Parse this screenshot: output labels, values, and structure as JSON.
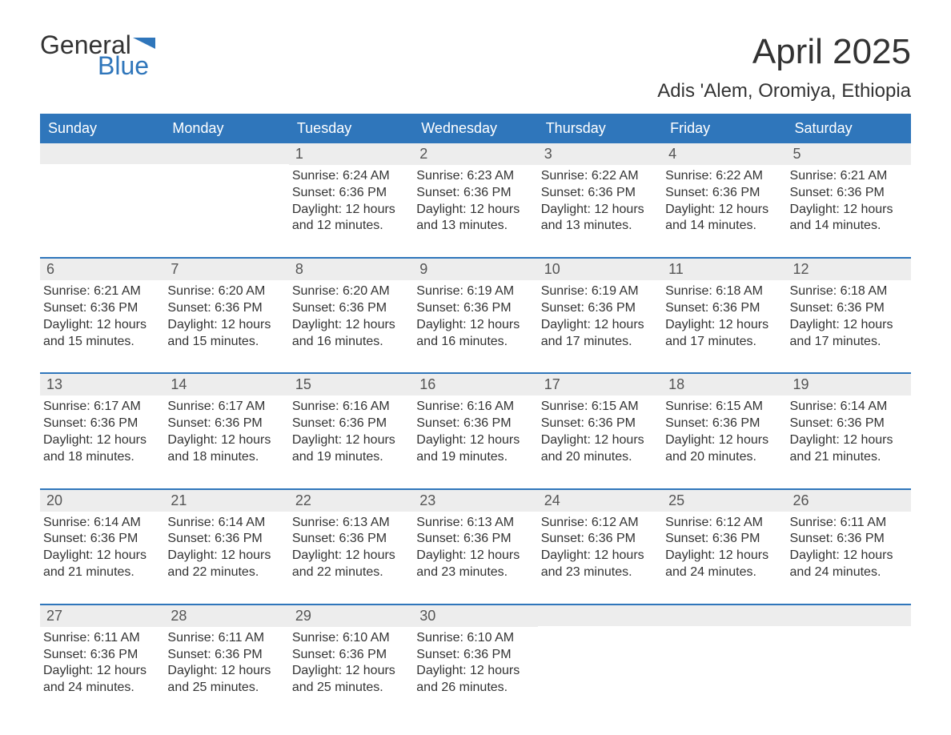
{
  "logo": {
    "general": "General",
    "blue": "Blue"
  },
  "title": "April 2025",
  "location": "Adis 'Alem, Oromiya, Ethiopia",
  "colors": {
    "header_bg": "#2f76bb",
    "header_text": "#ffffff",
    "daynum_bg": "#ededed",
    "daynum_text": "#555555",
    "body_text": "#333333",
    "week_border": "#2f76bb"
  },
  "day_names": [
    "Sunday",
    "Monday",
    "Tuesday",
    "Wednesday",
    "Thursday",
    "Friday",
    "Saturday"
  ],
  "weeks": [
    [
      null,
      null,
      {
        "n": "1",
        "sr": "Sunrise: 6:24 AM",
        "ss": "Sunset: 6:36 PM",
        "d1": "Daylight: 12 hours",
        "d2": "and 12 minutes."
      },
      {
        "n": "2",
        "sr": "Sunrise: 6:23 AM",
        "ss": "Sunset: 6:36 PM",
        "d1": "Daylight: 12 hours",
        "d2": "and 13 minutes."
      },
      {
        "n": "3",
        "sr": "Sunrise: 6:22 AM",
        "ss": "Sunset: 6:36 PM",
        "d1": "Daylight: 12 hours",
        "d2": "and 13 minutes."
      },
      {
        "n": "4",
        "sr": "Sunrise: 6:22 AM",
        "ss": "Sunset: 6:36 PM",
        "d1": "Daylight: 12 hours",
        "d2": "and 14 minutes."
      },
      {
        "n": "5",
        "sr": "Sunrise: 6:21 AM",
        "ss": "Sunset: 6:36 PM",
        "d1": "Daylight: 12 hours",
        "d2": "and 14 minutes."
      }
    ],
    [
      {
        "n": "6",
        "sr": "Sunrise: 6:21 AM",
        "ss": "Sunset: 6:36 PM",
        "d1": "Daylight: 12 hours",
        "d2": "and 15 minutes."
      },
      {
        "n": "7",
        "sr": "Sunrise: 6:20 AM",
        "ss": "Sunset: 6:36 PM",
        "d1": "Daylight: 12 hours",
        "d2": "and 15 minutes."
      },
      {
        "n": "8",
        "sr": "Sunrise: 6:20 AM",
        "ss": "Sunset: 6:36 PM",
        "d1": "Daylight: 12 hours",
        "d2": "and 16 minutes."
      },
      {
        "n": "9",
        "sr": "Sunrise: 6:19 AM",
        "ss": "Sunset: 6:36 PM",
        "d1": "Daylight: 12 hours",
        "d2": "and 16 minutes."
      },
      {
        "n": "10",
        "sr": "Sunrise: 6:19 AM",
        "ss": "Sunset: 6:36 PM",
        "d1": "Daylight: 12 hours",
        "d2": "and 17 minutes."
      },
      {
        "n": "11",
        "sr": "Sunrise: 6:18 AM",
        "ss": "Sunset: 6:36 PM",
        "d1": "Daylight: 12 hours",
        "d2": "and 17 minutes."
      },
      {
        "n": "12",
        "sr": "Sunrise: 6:18 AM",
        "ss": "Sunset: 6:36 PM",
        "d1": "Daylight: 12 hours",
        "d2": "and 17 minutes."
      }
    ],
    [
      {
        "n": "13",
        "sr": "Sunrise: 6:17 AM",
        "ss": "Sunset: 6:36 PM",
        "d1": "Daylight: 12 hours",
        "d2": "and 18 minutes."
      },
      {
        "n": "14",
        "sr": "Sunrise: 6:17 AM",
        "ss": "Sunset: 6:36 PM",
        "d1": "Daylight: 12 hours",
        "d2": "and 18 minutes."
      },
      {
        "n": "15",
        "sr": "Sunrise: 6:16 AM",
        "ss": "Sunset: 6:36 PM",
        "d1": "Daylight: 12 hours",
        "d2": "and 19 minutes."
      },
      {
        "n": "16",
        "sr": "Sunrise: 6:16 AM",
        "ss": "Sunset: 6:36 PM",
        "d1": "Daylight: 12 hours",
        "d2": "and 19 minutes."
      },
      {
        "n": "17",
        "sr": "Sunrise: 6:15 AM",
        "ss": "Sunset: 6:36 PM",
        "d1": "Daylight: 12 hours",
        "d2": "and 20 minutes."
      },
      {
        "n": "18",
        "sr": "Sunrise: 6:15 AM",
        "ss": "Sunset: 6:36 PM",
        "d1": "Daylight: 12 hours",
        "d2": "and 20 minutes."
      },
      {
        "n": "19",
        "sr": "Sunrise: 6:14 AM",
        "ss": "Sunset: 6:36 PM",
        "d1": "Daylight: 12 hours",
        "d2": "and 21 minutes."
      }
    ],
    [
      {
        "n": "20",
        "sr": "Sunrise: 6:14 AM",
        "ss": "Sunset: 6:36 PM",
        "d1": "Daylight: 12 hours",
        "d2": "and 21 minutes."
      },
      {
        "n": "21",
        "sr": "Sunrise: 6:14 AM",
        "ss": "Sunset: 6:36 PM",
        "d1": "Daylight: 12 hours",
        "d2": "and 22 minutes."
      },
      {
        "n": "22",
        "sr": "Sunrise: 6:13 AM",
        "ss": "Sunset: 6:36 PM",
        "d1": "Daylight: 12 hours",
        "d2": "and 22 minutes."
      },
      {
        "n": "23",
        "sr": "Sunrise: 6:13 AM",
        "ss": "Sunset: 6:36 PM",
        "d1": "Daylight: 12 hours",
        "d2": "and 23 minutes."
      },
      {
        "n": "24",
        "sr": "Sunrise: 6:12 AM",
        "ss": "Sunset: 6:36 PM",
        "d1": "Daylight: 12 hours",
        "d2": "and 23 minutes."
      },
      {
        "n": "25",
        "sr": "Sunrise: 6:12 AM",
        "ss": "Sunset: 6:36 PM",
        "d1": "Daylight: 12 hours",
        "d2": "and 24 minutes."
      },
      {
        "n": "26",
        "sr": "Sunrise: 6:11 AM",
        "ss": "Sunset: 6:36 PM",
        "d1": "Daylight: 12 hours",
        "d2": "and 24 minutes."
      }
    ],
    [
      {
        "n": "27",
        "sr": "Sunrise: 6:11 AM",
        "ss": "Sunset: 6:36 PM",
        "d1": "Daylight: 12 hours",
        "d2": "and 24 minutes."
      },
      {
        "n": "28",
        "sr": "Sunrise: 6:11 AM",
        "ss": "Sunset: 6:36 PM",
        "d1": "Daylight: 12 hours",
        "d2": "and 25 minutes."
      },
      {
        "n": "29",
        "sr": "Sunrise: 6:10 AM",
        "ss": "Sunset: 6:36 PM",
        "d1": "Daylight: 12 hours",
        "d2": "and 25 minutes."
      },
      {
        "n": "30",
        "sr": "Sunrise: 6:10 AM",
        "ss": "Sunset: 6:36 PM",
        "d1": "Daylight: 12 hours",
        "d2": "and 26 minutes."
      },
      null,
      null,
      null
    ]
  ]
}
